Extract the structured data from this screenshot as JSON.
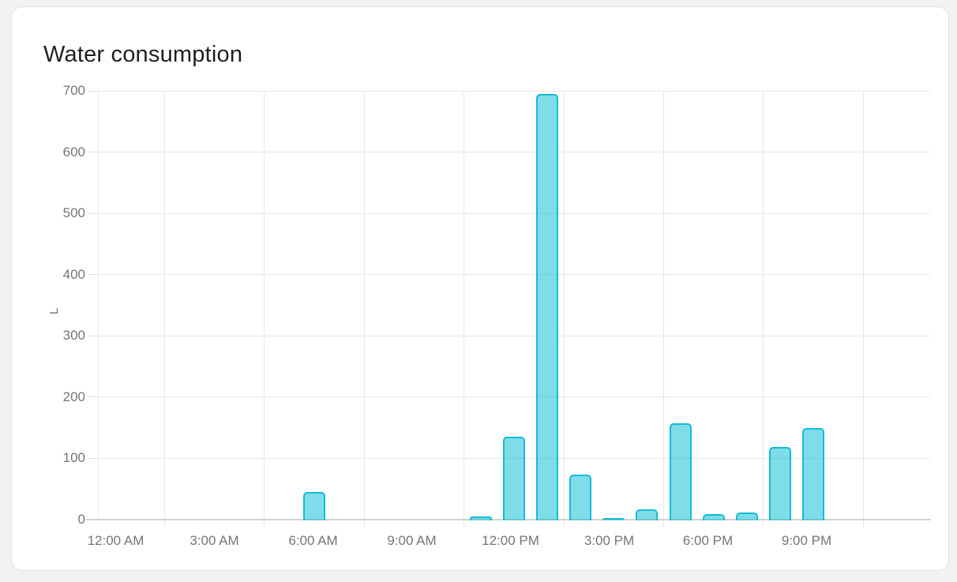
{
  "card": {
    "title": "Water consumption"
  },
  "chart_data": {
    "type": "bar",
    "title": "Water consumption",
    "xlabel": "",
    "ylabel": "L",
    "unit": "L",
    "ylim": [
      0,
      700
    ],
    "y_ticks": [
      0,
      100,
      200,
      300,
      400,
      500,
      600,
      700
    ],
    "x_tick_labels": [
      "12:00 AM",
      "3:00 AM",
      "6:00 AM",
      "9:00 AM",
      "12:00 PM",
      "3:00 PM",
      "6:00 PM",
      "9:00 PM"
    ],
    "grid": true,
    "legend_position": "none",
    "categories": [
      "12 AM",
      "1 AM",
      "2 AM",
      "3 AM",
      "4 AM",
      "5 AM",
      "6 AM",
      "7 AM",
      "8 AM",
      "9 AM",
      "10 AM",
      "11 AM",
      "12 PM",
      "1 PM",
      "2 PM",
      "3 PM",
      "4 PM",
      "5 PM",
      "6 PM",
      "7 PM",
      "8 PM",
      "9 PM",
      "10 PM",
      "11 PM"
    ],
    "values": [
      0,
      0,
      0,
      0,
      0,
      0,
      45,
      0,
      0,
      0,
      0,
      5,
      135,
      695,
      73,
      2,
      16,
      157,
      8,
      11,
      118,
      149,
      0,
      0
    ],
    "colors": {
      "bar_fill": "rgba(0,188,212,0.5)",
      "bar_border": "#14bdd3",
      "gridline": "#e7e7e7",
      "axis_line": "#d2d2d2",
      "tick_text": "#757575",
      "title_text": "#1f1f1f"
    }
  }
}
